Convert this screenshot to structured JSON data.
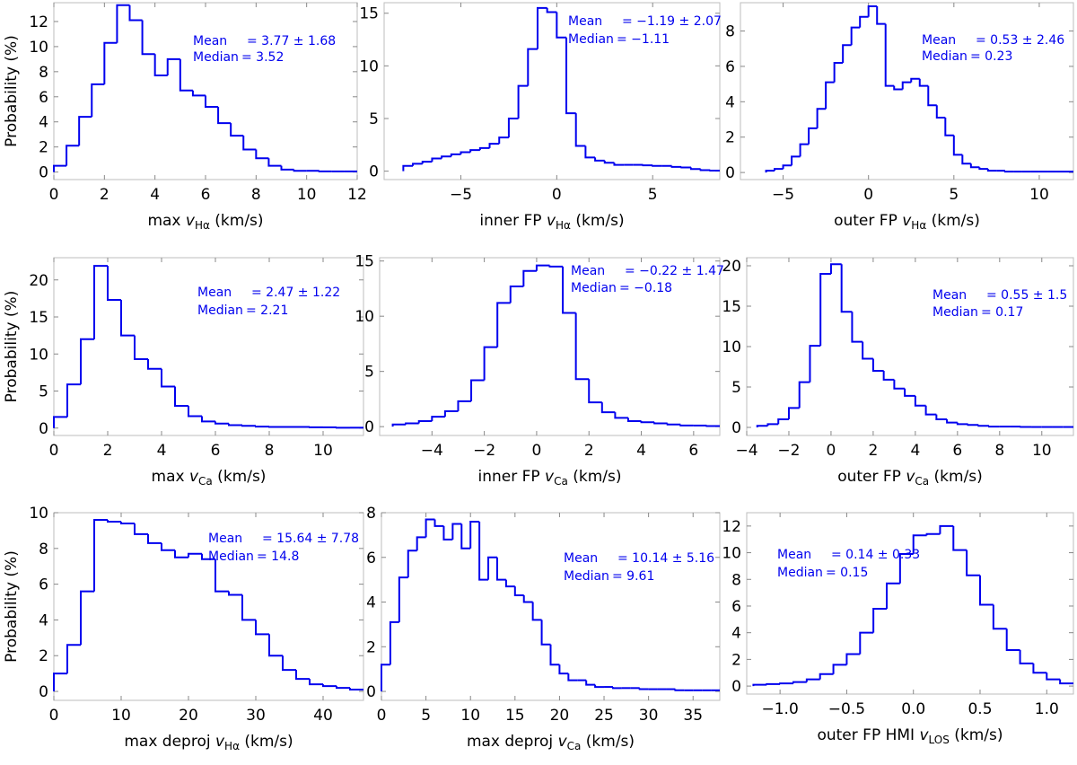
{
  "figure": {
    "y_axis_label": "Probability (%)",
    "stroke_color": "#0000ee",
    "text_color": "#0000ee"
  },
  "chart_data": [
    {
      "type": "histogram",
      "xlabel": {
        "pre": "max ",
        "var": "v",
        "sub": "Hα",
        "post": " (km/s)"
      },
      "ylabel": "Probability (%)",
      "xlim": [
        0,
        12
      ],
      "ylim": [
        -0.6,
        13.5
      ],
      "xticks": [
        0,
        2,
        4,
        6,
        8,
        10,
        12
      ],
      "yticks": [
        0,
        2,
        4,
        6,
        8,
        10,
        12
      ],
      "edges": [
        0,
        0.5,
        1.0,
        1.5,
        2.0,
        2.5,
        3.0,
        3.5,
        4.0,
        4.5,
        5.0,
        5.5,
        6.0,
        6.5,
        7.0,
        7.5,
        8.0,
        8.5,
        9.0,
        9.5,
        10.0,
        10.5,
        11.0,
        11.5,
        12.0
      ],
      "values": [
        0.5,
        2.1,
        4.4,
        7.0,
        10.3,
        13.3,
        12.1,
        9.4,
        7.7,
        9.0,
        6.5,
        6.1,
        5.2,
        3.9,
        2.9,
        1.8,
        1.1,
        0.5,
        0.2,
        0.1,
        0.1,
        0.05,
        0.05,
        0.05
      ],
      "annotation": {
        "mean_label": "Mean",
        "mean_value": "= 3.77 ± 1.68",
        "median_label": "Median",
        "median_value": "= 3.52"
      }
    },
    {
      "type": "histogram",
      "xlabel": {
        "pre": "inner FP ",
        "var": "v",
        "sub": "Hα",
        "post": " (km/s)"
      },
      "ylabel": "",
      "xlim": [
        -9,
        8.5
      ],
      "ylim": [
        -0.8,
        16
      ],
      "xticks": [
        -5,
        0,
        5
      ],
      "yticks": [
        0,
        5,
        10,
        15
      ],
      "edges": [
        -8.0,
        -7.5,
        -7.0,
        -6.5,
        -6.0,
        -5.5,
        -5.0,
        -4.5,
        -4.0,
        -3.5,
        -3.0,
        -2.5,
        -2.0,
        -1.5,
        -1.0,
        -0.5,
        0.0,
        0.5,
        1.0,
        1.5,
        2.0,
        2.5,
        3.0,
        3.5,
        4.0,
        4.5,
        5.0,
        5.5,
        6.0,
        6.5,
        7.0,
        7.5,
        8.0,
        8.5
      ],
      "values": [
        0.5,
        0.7,
        0.9,
        1.2,
        1.4,
        1.6,
        1.8,
        2.0,
        2.2,
        2.6,
        3.2,
        5.0,
        8.1,
        11.6,
        15.5,
        15.1,
        12.7,
        5.5,
        2.4,
        1.3,
        1.0,
        0.8,
        0.6,
        0.6,
        0.6,
        0.55,
        0.5,
        0.5,
        0.4,
        0.35,
        0.2,
        0.1,
        0.05
      ],
      "annotation": {
        "mean_label": "Mean",
        "mean_value": "= −1.19 ± 2.07",
        "median_label": "Median",
        "median_value": "= −1.11"
      }
    },
    {
      "type": "histogram",
      "xlabel": {
        "pre": "outer FP ",
        "var": "v",
        "sub": "Hα",
        "post": " (km/s)"
      },
      "ylabel": "",
      "xlim": [
        -7.5,
        12
      ],
      "ylim": [
        -0.4,
        9.6
      ],
      "xticks": [
        -5,
        0,
        5,
        10
      ],
      "yticks": [
        0,
        2,
        4,
        6,
        8
      ],
      "edges": [
        -6.0,
        -5.5,
        -5.0,
        -4.5,
        -4.0,
        -3.5,
        -3.0,
        -2.5,
        -2.0,
        -1.5,
        -1.0,
        -0.5,
        0.0,
        0.5,
        1.0,
        1.5,
        2.0,
        2.5,
        3.0,
        3.5,
        4.0,
        4.5,
        5.0,
        5.5,
        6.0,
        6.5,
        7.0,
        7.5,
        8.0,
        8.5,
        9.0,
        9.5,
        10.0,
        10.5,
        11.0,
        11.5,
        12.0
      ],
      "values": [
        0.1,
        0.2,
        0.4,
        0.9,
        1.6,
        2.5,
        3.6,
        5.1,
        6.2,
        7.2,
        8.2,
        8.8,
        9.4,
        8.4,
        4.9,
        4.7,
        5.1,
        5.3,
        4.9,
        3.8,
        3.1,
        2.1,
        1.0,
        0.5,
        0.3,
        0.2,
        0.1,
        0.1,
        0.05,
        0.05,
        0.05,
        0.05,
        0.05,
        0.05,
        0.05,
        0.05
      ],
      "annotation": {
        "mean_label": "Mean",
        "mean_value": "= 0.53 ± 2.46",
        "median_label": "Median",
        "median_value": "= 0.23"
      }
    },
    {
      "type": "histogram",
      "xlabel": {
        "pre": "max ",
        "var": "v",
        "sub": "Ca",
        "post": " (km/s)"
      },
      "ylabel": "Probability (%)",
      "xlim": [
        0,
        11.5
      ],
      "ylim": [
        -1,
        23
      ],
      "xticks": [
        0,
        2,
        4,
        6,
        8,
        10
      ],
      "yticks": [
        0,
        5,
        10,
        15,
        20
      ],
      "edges": [
        0,
        0.5,
        1.0,
        1.5,
        2.0,
        2.5,
        3.0,
        3.5,
        4.0,
        4.5,
        5.0,
        5.5,
        6.0,
        6.5,
        7.0,
        7.5,
        8.0,
        8.5,
        9.0,
        9.5,
        10.0,
        10.5,
        11.0,
        11.5
      ],
      "values": [
        1.5,
        5.9,
        12.0,
        21.9,
        17.3,
        12.5,
        9.3,
        8.0,
        5.6,
        3.0,
        1.6,
        0.9,
        0.6,
        0.4,
        0.3,
        0.2,
        0.15,
        0.15,
        0.15,
        0.1,
        0.1,
        0.05,
        0.05
      ],
      "annotation": {
        "mean_label": "Mean",
        "mean_value": "= 2.47 ± 1.22",
        "median_label": "Median",
        "median_value": "= 2.21"
      }
    },
    {
      "type": "histogram",
      "xlabel": {
        "pre": "inner FP ",
        "var": "v",
        "sub": "Ca",
        "post": " (km/s)"
      },
      "ylabel": "",
      "xlim": [
        -6,
        7
      ],
      "ylim": [
        -0.8,
        15.3
      ],
      "xticks": [
        -4,
        -2,
        0,
        2,
        4,
        6
      ],
      "yticks": [
        0,
        5,
        10,
        15
      ],
      "edges": [
        -5.5,
        -5.0,
        -4.5,
        -4.0,
        -3.5,
        -3.0,
        -2.5,
        -2.0,
        -1.5,
        -1.0,
        -0.5,
        0.0,
        0.5,
        1.0,
        1.5,
        2.0,
        2.5,
        3.0,
        3.5,
        4.0,
        4.5,
        5.0,
        5.5,
        6.0,
        6.5,
        7.0
      ],
      "values": [
        0.2,
        0.3,
        0.5,
        0.9,
        1.4,
        2.3,
        4.2,
        7.2,
        11.2,
        12.7,
        14.1,
        14.6,
        14.5,
        10.3,
        4.3,
        2.2,
        1.3,
        0.8,
        0.5,
        0.4,
        0.3,
        0.2,
        0.1,
        0.1,
        0.05
      ],
      "annotation": {
        "mean_label": "Mean",
        "mean_value": "= −0.22 ± 1.47",
        "median_label": "Median",
        "median_value": "= −0.18"
      }
    },
    {
      "type": "histogram",
      "xlabel": {
        "pre": "outer FP ",
        "var": "v",
        "sub": "Ca",
        "post": " (km/s)"
      },
      "ylabel": "",
      "xlim": [
        -4,
        11.5
      ],
      "ylim": [
        -1,
        21
      ],
      "xticks": [
        -4,
        -2,
        0,
        2,
        4,
        6,
        8,
        10
      ],
      "yticks": [
        0,
        5,
        10,
        15,
        20
      ],
      "edges": [
        -3.5,
        -3.0,
        -2.5,
        -2.0,
        -1.5,
        -1.0,
        -0.5,
        0.0,
        0.5,
        1.0,
        1.5,
        2.0,
        2.5,
        3.0,
        3.5,
        4.0,
        4.5,
        5.0,
        5.5,
        6.0,
        6.5,
        7.0,
        7.5,
        8.0,
        8.5,
        9.0,
        9.5,
        10.0,
        10.5,
        11.0,
        11.5
      ],
      "values": [
        0.2,
        0.4,
        1.0,
        2.4,
        5.6,
        10.1,
        19.0,
        20.2,
        14.3,
        10.6,
        8.5,
        7.0,
        5.9,
        4.8,
        3.9,
        2.7,
        1.6,
        1.0,
        0.6,
        0.4,
        0.3,
        0.2,
        0.1,
        0.1,
        0.1,
        0.05,
        0.05,
        0.05,
        0.05,
        0.05
      ],
      "annotation": {
        "mean_label": "Mean",
        "mean_value": "= 0.55 ± 1.5",
        "median_label": "Median",
        "median_value": "= 0.17"
      }
    },
    {
      "type": "histogram",
      "xlabel": {
        "pre": "max deproj ",
        "var": "v",
        "sub": "Hα",
        "post": " (km/s)"
      },
      "ylabel": "Probability (%)",
      "xlim": [
        0,
        46
      ],
      "ylim": [
        -0.5,
        10
      ],
      "xticks": [
        0,
        10,
        20,
        30,
        40
      ],
      "yticks": [
        0,
        2,
        4,
        6,
        8,
        10
      ],
      "edges": [
        0,
        2,
        4,
        6,
        8,
        10,
        12,
        14,
        16,
        18,
        20,
        22,
        24,
        26,
        28,
        30,
        32,
        34,
        36,
        38,
        40,
        42,
        44,
        46
      ],
      "values": [
        1.0,
        2.6,
        5.6,
        9.6,
        9.5,
        9.4,
        8.8,
        8.3,
        7.9,
        7.5,
        7.7,
        7.4,
        5.6,
        5.4,
        4.0,
        3.2,
        2.0,
        1.2,
        0.7,
        0.4,
        0.3,
        0.2,
        0.1
      ],
      "annotation": {
        "mean_label": "Mean",
        "mean_value": "= 15.64 ± 7.78",
        "median_label": "Median",
        "median_value": "= 14.8"
      }
    },
    {
      "type": "histogram",
      "xlabel": {
        "pre": "max deproj ",
        "var": "v",
        "sub": "Ca",
        "post": " (km/s)"
      },
      "ylabel": "",
      "xlim": [
        0,
        38
      ],
      "ylim": [
        -0.4,
        8
      ],
      "xticks": [
        0,
        5,
        10,
        15,
        20,
        25,
        30,
        35
      ],
      "yticks": [
        0,
        2,
        4,
        6,
        8
      ],
      "edges": [
        0,
        1,
        2,
        3,
        4,
        5,
        6,
        7,
        8,
        9,
        10,
        11,
        12,
        13,
        14,
        15,
        16,
        17,
        18,
        19,
        20,
        21,
        22,
        23,
        24,
        25,
        26,
        27,
        28,
        29,
        30,
        31,
        32,
        33,
        34,
        35,
        36,
        37,
        38
      ],
      "values": [
        1.2,
        3.1,
        5.1,
        6.3,
        6.9,
        7.7,
        7.4,
        6.8,
        7.5,
        6.4,
        7.6,
        5.0,
        6.0,
        5.0,
        4.7,
        4.3,
        4.0,
        3.2,
        2.1,
        1.2,
        0.8,
        0.5,
        0.5,
        0.3,
        0.2,
        0.2,
        0.15,
        0.15,
        0.15,
        0.1,
        0.1,
        0.1,
        0.1,
        0.05,
        0.05,
        0.05,
        0.05,
        0.05
      ],
      "annotation": {
        "mean_label": "Mean",
        "mean_value": "= 10.14 ± 5.16",
        "median_label": "Median",
        "median_value": "= 9.61"
      }
    },
    {
      "type": "histogram",
      "xlabel": {
        "pre": "outer FP HMI ",
        "var": "v",
        "sub": "LOS",
        "post": " (km/s)"
      },
      "ylabel": "",
      "xlim": [
        -1.25,
        1.2
      ],
      "ylim": [
        -0.6,
        13
      ],
      "xticks": [
        -1.0,
        -0.5,
        0.0,
        0.5,
        1.0
      ],
      "xtick_labels": [
        "−1.0",
        "−0.5",
        "0.0",
        "0.5",
        "1.0"
      ],
      "yticks": [
        0,
        2,
        4,
        6,
        8,
        10,
        12
      ],
      "edges": [
        -1.2,
        -1.1,
        -1.0,
        -0.9,
        -0.8,
        -0.7,
        -0.6,
        -0.5,
        -0.4,
        -0.3,
        -0.2,
        -0.1,
        0.0,
        0.1,
        0.2,
        0.3,
        0.4,
        0.5,
        0.6,
        0.7,
        0.8,
        0.9,
        1.0,
        1.1,
        1.2
      ],
      "values": [
        0.1,
        0.15,
        0.2,
        0.3,
        0.5,
        0.9,
        1.6,
        2.4,
        4.0,
        5.8,
        7.7,
        9.9,
        11.3,
        11.4,
        12.0,
        10.2,
        8.3,
        6.1,
        4.3,
        2.7,
        1.7,
        1.0,
        0.5,
        0.2
      ],
      "annotation": {
        "mean_label": "Mean",
        "mean_value": "= 0.14 ± 0.33",
        "median_label": "Median",
        "median_value": "= 0.15"
      }
    }
  ]
}
